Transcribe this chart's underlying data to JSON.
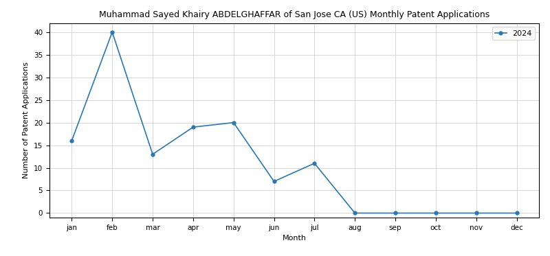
{
  "title": "Muhammad Sayed Khairy ABDELGHAFFAR of San Jose CA (US) Monthly Patent Applications",
  "xlabel": "Month",
  "ylabel": "Number of Patent Applications",
  "months": [
    "jan",
    "feb",
    "mar",
    "apr",
    "may",
    "jun",
    "jul",
    "aug",
    "sep",
    "oct",
    "nov",
    "dec"
  ],
  "values_2024": [
    16,
    40,
    13,
    19,
    20,
    7,
    11,
    0,
    0,
    0,
    0,
    0
  ],
  "line_color": "#2878b5",
  "marker": "o",
  "marker_size": 3.5,
  "line_width": 1.2,
  "legend_label": "2024",
  "ylim_min": -1,
  "ylim_max": 42,
  "title_fontsize": 9,
  "label_fontsize": 8,
  "tick_fontsize": 7.5,
  "legend_fontsize": 8,
  "background_color": "#ffffff",
  "grid_color": "#c8c8c8",
  "yticks": [
    0,
    5,
    10,
    15,
    20,
    25,
    30,
    35,
    40
  ]
}
